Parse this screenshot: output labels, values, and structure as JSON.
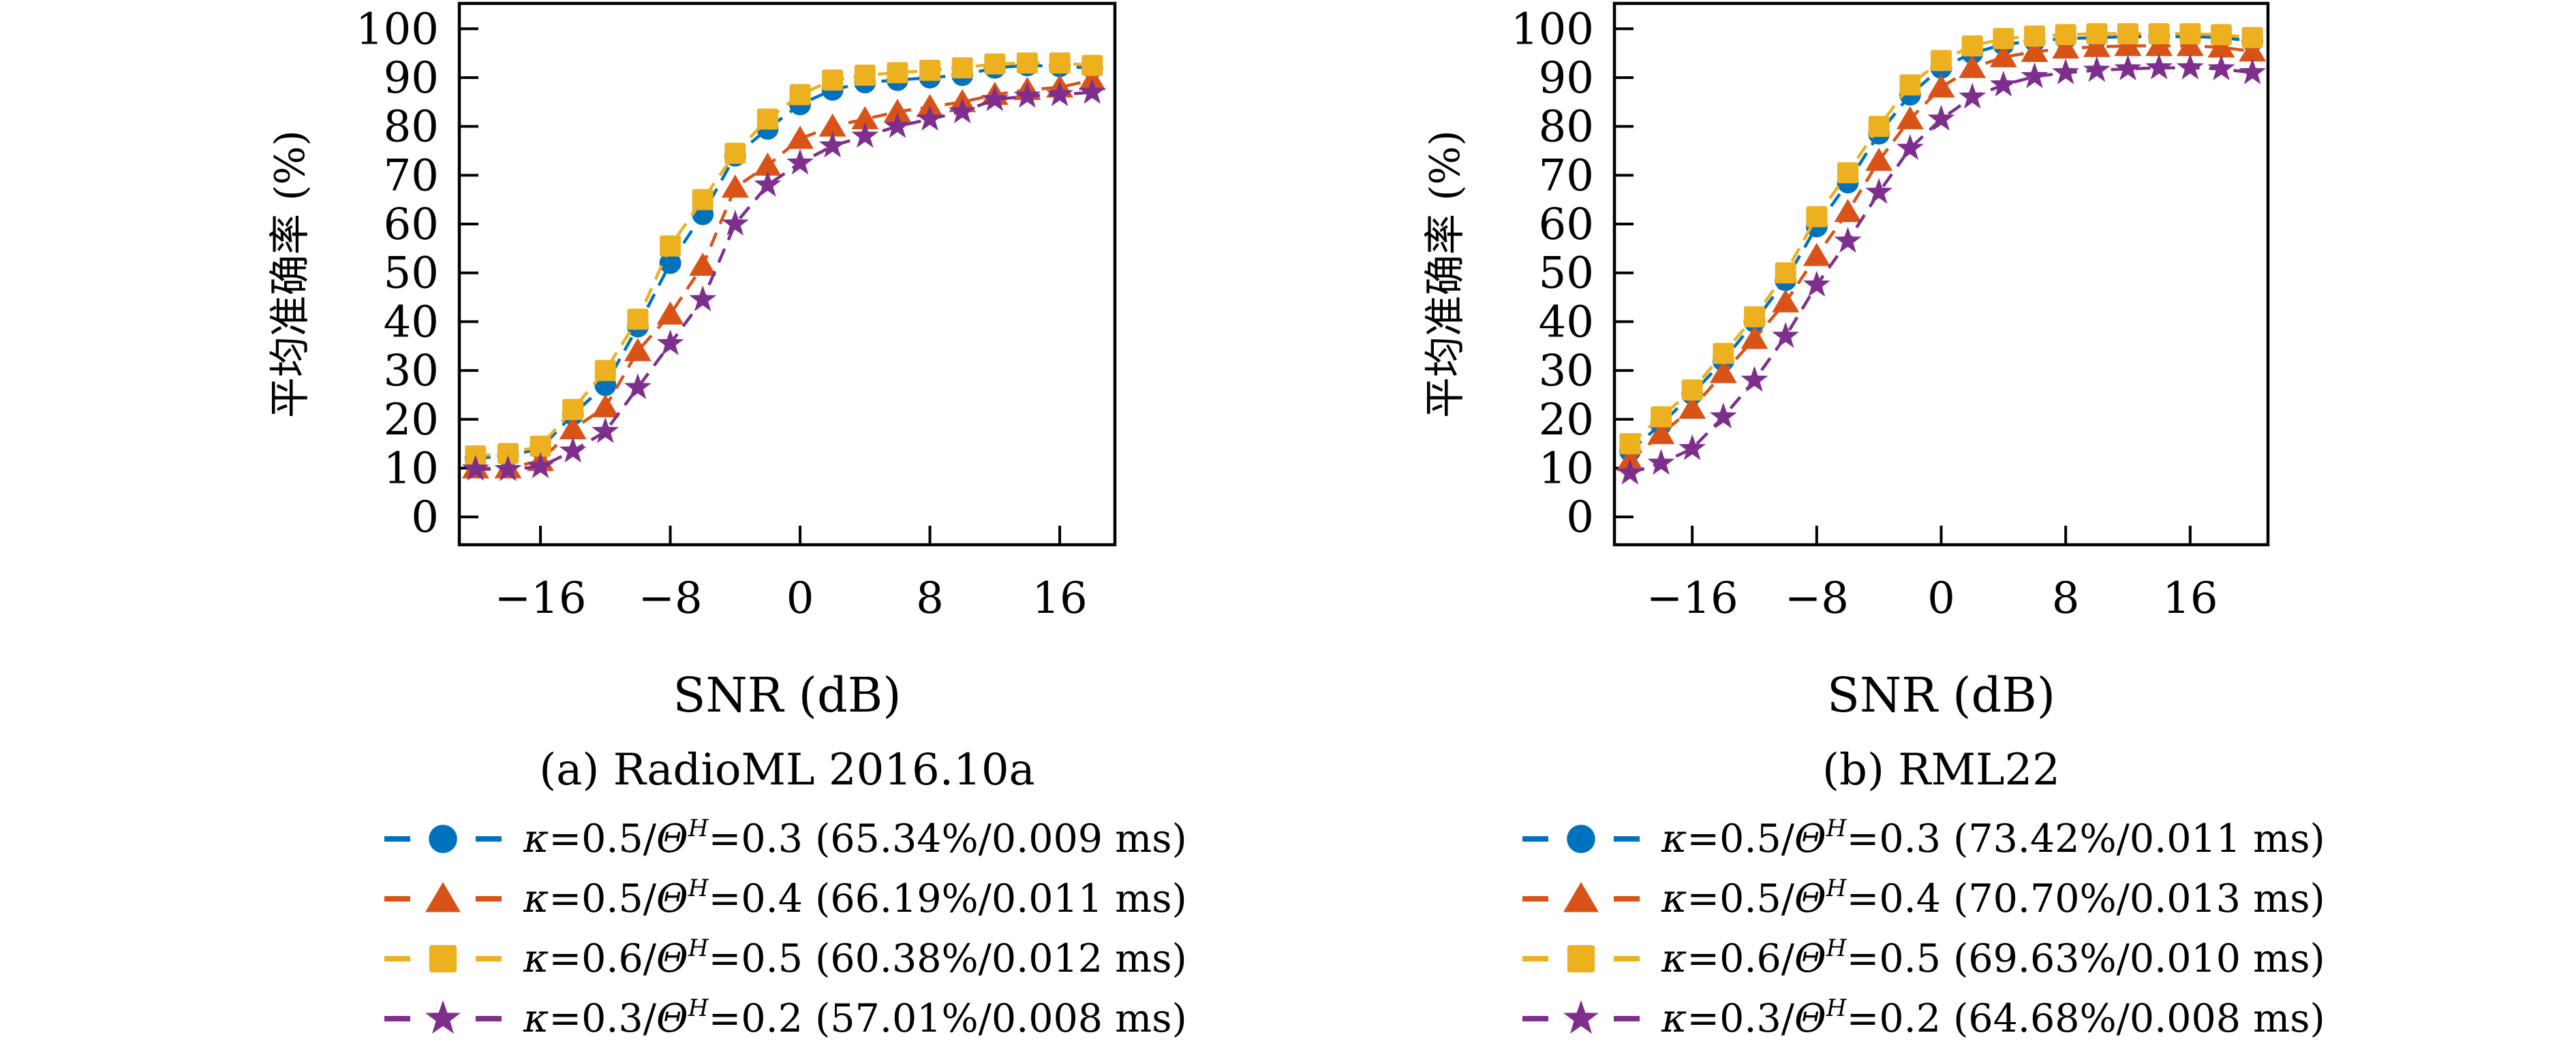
{
  "page": {
    "background": "#ffffff"
  },
  "chart_data": [
    {
      "type": "line",
      "caption": "(a) RadioML 2016.10a",
      "xlabel": "SNR (dB)",
      "ylabel": "平均准确率 (%)",
      "xlim": [
        -21,
        19.4
      ],
      "ylim": [
        -5.7,
        105.2
      ],
      "xticks": [
        -16,
        -8,
        0,
        8,
        16
      ],
      "yticks": [
        0,
        10,
        20,
        30,
        40,
        50,
        60,
        70,
        80,
        90,
        100
      ],
      "grid": false,
      "legend_position": "below",
      "x": [
        -20,
        -18,
        -16,
        -14,
        -12,
        -10,
        -8,
        -6,
        -4,
        -2,
        0,
        2,
        4,
        6,
        8,
        10,
        12,
        14,
        16,
        18
      ],
      "series": [
        {
          "name": "κ=0.5/ΘH=0.3",
          "label_parts": [
            "κ",
            "=0.5/",
            "Θ",
            "H",
            "=0.3 (65.34%/0.009 ms)"
          ],
          "accuracy": "65.34%",
          "inference_time": "0.009 ms",
          "marker": "circle",
          "color": "#0072BD",
          "values": [
            12,
            12.5,
            14,
            21,
            27,
            39,
            52,
            62,
            74,
            79.5,
            84.5,
            87.5,
            89,
            89.5,
            90,
            90.5,
            92,
            92.5,
            92.3,
            92
          ]
        },
        {
          "name": "κ=0.5/ΘH=0.4",
          "label_parts": [
            "κ",
            "=0.5/",
            "Θ",
            "H",
            "=0.4 (66.19%/0.011 ms)"
          ],
          "accuracy": "66.19%",
          "inference_time": "0.011 ms",
          "marker": "triangle",
          "color": "#D95319",
          "values": [
            10,
            10,
            11.5,
            18,
            22.5,
            34,
            41.5,
            51.5,
            67.5,
            72,
            77.5,
            80,
            81.5,
            83,
            84,
            85,
            86.5,
            87.5,
            88,
            89.5
          ]
        },
        {
          "name": "κ=0.6/ΘH=0.5",
          "label_parts": [
            "κ",
            "=0.6/",
            "Θ",
            "H",
            "=0.5 (60.38%/0.012 ms)"
          ],
          "accuracy": "60.38%",
          "inference_time": "0.012 ms",
          "marker": "square",
          "color": "#EDB120",
          "values": [
            12.5,
            13,
            14.5,
            22,
            30,
            40.5,
            55.5,
            65,
            74.5,
            81.5,
            86.5,
            89.5,
            90.5,
            91,
            91.5,
            92,
            92.8,
            93,
            93,
            92.5
          ]
        },
        {
          "name": "κ=0.3/ΘH=0.2",
          "label_parts": [
            "κ",
            "=0.3/",
            "Θ",
            "H",
            "=0.2 (57.01%/0.008 ms)"
          ],
          "accuracy": "57.01%",
          "inference_time": "0.008 ms",
          "marker": "star",
          "color": "#7E2F8E",
          "values": [
            9.8,
            9.7,
            10.3,
            13.5,
            17.5,
            26.5,
            35.5,
            44.5,
            60,
            68,
            72.5,
            76,
            78,
            80,
            81.5,
            83,
            85.5,
            86.2,
            86.5,
            87
          ]
        }
      ]
    },
    {
      "type": "line",
      "caption": "(b) RML22",
      "xlabel": "SNR (dB)",
      "ylabel": "平均准确率 (%)",
      "xlim": [
        -21,
        21
      ],
      "ylim": [
        -5.7,
        105.2
      ],
      "xticks": [
        -16,
        -8,
        0,
        8,
        16
      ],
      "yticks": [
        0,
        10,
        20,
        30,
        40,
        50,
        60,
        70,
        80,
        90,
        100
      ],
      "grid": false,
      "legend_position": "below",
      "x": [
        -20,
        -18,
        -16,
        -14,
        -12,
        -10,
        -8,
        -6,
        -4,
        -2,
        0,
        2,
        4,
        6,
        8,
        10,
        12,
        14,
        16,
        18,
        20
      ],
      "series": [
        {
          "name": "κ=0.5/ΘH=0.3",
          "label_parts": [
            "κ",
            "=0.5/",
            "Θ",
            "H",
            "=0.3 (73.42%/0.011 ms)"
          ],
          "accuracy": "73.42%",
          "inference_time": "0.011 ms",
          "marker": "circle",
          "color": "#0072BD",
          "values": [
            13.5,
            19,
            25.2,
            32,
            40,
            48.5,
            59.5,
            68.5,
            78.5,
            86.5,
            92,
            95,
            96.8,
            97.5,
            98,
            98.2,
            98.4,
            98.4,
            98.4,
            98.2,
            97.5
          ]
        },
        {
          "name": "κ=0.5/ΘH=0.4",
          "label_parts": [
            "κ",
            "=0.5/",
            "Θ",
            "H",
            "=0.4 (70.70%/0.013 ms)"
          ],
          "accuracy": "70.70%",
          "inference_time": "0.013 ms",
          "marker": "triangle",
          "color": "#D95319",
          "values": [
            11.5,
            17,
            22.2,
            29.5,
            36.5,
            44,
            53.5,
            62.5,
            73,
            81.5,
            88,
            92,
            94.2,
            95.3,
            96,
            96.3,
            96.5,
            96.5,
            96.5,
            96.2,
            95.4
          ]
        },
        {
          "name": "κ=0.6/ΘH=0.5",
          "label_parts": [
            "κ",
            "=0.6/",
            "Θ",
            "H",
            "=0.5 (69.63%/0.010 ms)"
          ],
          "accuracy": "69.63%",
          "inference_time": "0.010 ms",
          "marker": "square",
          "color": "#EDB120",
          "values": [
            15,
            20.5,
            26,
            33.5,
            41,
            50,
            61.5,
            70.5,
            80,
            88.5,
            93.5,
            96.5,
            98,
            98.5,
            98.8,
            99,
            99,
            99,
            99,
            98.8,
            98.2
          ]
        },
        {
          "name": "κ=0.3/ΘH=0.2",
          "label_parts": [
            "κ",
            "=0.3/",
            "Θ",
            "H",
            "=0.2 (64.68%/0.008 ms)"
          ],
          "accuracy": "64.68%",
          "inference_time": "0.008 ms",
          "marker": "star",
          "color": "#7E2F8E",
          "values": [
            9,
            11,
            14,
            20.5,
            28,
            37,
            47.5,
            56.5,
            66.5,
            75.5,
            81.5,
            86,
            88.5,
            90.2,
            91,
            91.5,
            91.8,
            92,
            92,
            91.8,
            91
          ]
        }
      ]
    }
  ]
}
